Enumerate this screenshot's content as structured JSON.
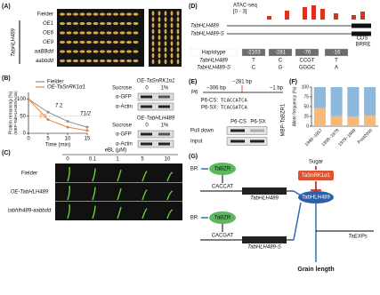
{
  "panels": {
    "a": {
      "label": "(A)",
      "rows": [
        "Fielder",
        "OE1",
        "OE6",
        "OE9",
        "aaBBdd",
        "aabbdd"
      ],
      "group": "TabHLH489"
    },
    "b": {
      "label": "(B)",
      "chart": {
        "type": "line",
        "y_label": "Protein remaining (%)",
        "y_sublabel": "(MBP-TabHLH489/Actin)",
        "x_label": "Time (min)",
        "x": [
          0,
          5,
          10,
          15
        ],
        "series": [
          {
            "name": "Fielder",
            "color": "#8c8c8c",
            "values": [
              100,
              62,
              35,
              18
            ]
          },
          {
            "name": "OE-TaSnRK1α1",
            "color": "#e8833a",
            "values": [
              100,
              40,
              18,
              8
            ]
          }
        ],
        "xlim": [
          0,
          15
        ],
        "ylim": [
          0,
          120
        ],
        "xticks": [
          0,
          5,
          10,
          15
        ],
        "yticks": [
          0,
          50,
          100
        ],
        "annotations": [
          "7.2",
          "3.9"
        ],
        "half_life": "T1/2"
      },
      "blots": [
        {
          "title": "OE-TaSnRK1α1",
          "treatment": "Sucrose",
          "doses": [
            "0",
            "1%"
          ],
          "bands": [
            "α-GFP",
            "α-Actin"
          ]
        },
        {
          "title": "OE-TabHLH489",
          "treatment": "Sucrose",
          "doses": [
            "0",
            "1%"
          ],
          "bands": [
            "α-GFP",
            "α-Actin"
          ]
        }
      ]
    },
    "c": {
      "label": "(C)",
      "treatment": "eBL (μM)",
      "doses": [
        "0",
        "0.1",
        "1",
        "5",
        "10"
      ],
      "rows": [
        "Fielder",
        "OE-TabHLH489",
        "tabhlh489-aabbdd"
      ]
    },
    "d": {
      "label": "(D)",
      "track": "ATAC-seq",
      "range": "[0 - 3]",
      "genes": [
        "TabHLH489",
        "TabHLH489-S"
      ],
      "cds": "CDS",
      "motif": "BRRE",
      "table": {
        "header": [
          "Haplotype",
          "-2103",
          "-281",
          "-76",
          "-16"
        ],
        "rows": [
          [
            "TabHLH489",
            "T",
            "C",
            "CCGT",
            "T"
          ],
          [
            "TabHLH489-S",
            "C",
            "G",
            "GGGC",
            "A"
          ]
        ]
      }
    },
    "e": {
      "label": "(E)",
      "probe": "P6",
      "start": "−306 bp",
      "site": "−281 bp",
      "end": "−1 bp",
      "seqs": [
        {
          "name": "P6-CS:",
          "seq": "TCACCATCA"
        },
        {
          "name": "P6-SX:",
          "seq": "TCACGATCA"
        }
      ],
      "lanes": [
        "P6-CS",
        "P6-SX"
      ],
      "rows": [
        "Pull down",
        "Input"
      ],
      "protein": "MBP-TaBZR1"
    },
    "f": {
      "label": "(F)",
      "chart": {
        "type": "bar",
        "y_label": "Allele frequency (%)",
        "categories": [
          "1949~1957",
          "1958~1978",
          "1979~1999",
          "Post2000"
        ],
        "series": [
          {
            "color": "#f5b97a",
            "values": [
              46,
              26,
              25,
              27
            ]
          },
          {
            "color": "#8fb8dd",
            "values": [
              54,
              74,
              75,
              73
            ]
          }
        ],
        "ylim": [
          0,
          100
        ],
        "yticks": [
          0,
          25,
          50,
          75,
          100
        ]
      }
    },
    "g": {
      "label": "(G)",
      "nodes": [
        "BR",
        "TaBZR",
        "CACCAT",
        "TabHLH489",
        "BR",
        "TaBZR",
        "CACGAT",
        "TabHLH489-S",
        "Sugar",
        "TaSnRK1α1",
        "TabHLH489",
        "TaEXPs",
        "Grain length"
      ]
    }
  }
}
